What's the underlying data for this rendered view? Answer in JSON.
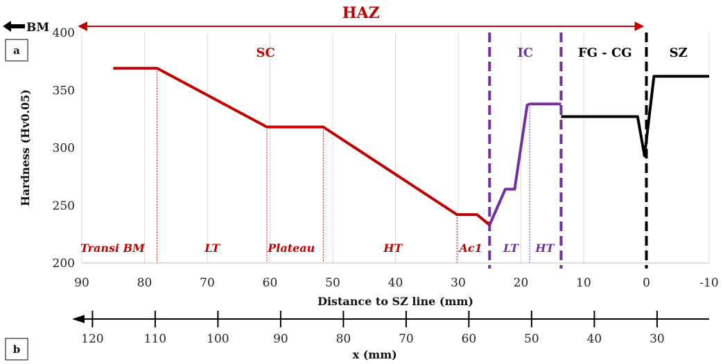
{
  "colors": {
    "red": "#c00000",
    "purple": "#7030a0",
    "black": "#000000",
    "grid": "#d9d9d9",
    "haz_arrow": "#c00000"
  },
  "panels": {
    "a": "a",
    "b": "b"
  },
  "haz": {
    "label": "HAZ",
    "x_start": 91,
    "x_end": 0
  },
  "bm_arrow": {
    "label": "BM"
  },
  "region_labels": [
    {
      "text": "SC",
      "x": 60.7,
      "color": "red"
    },
    {
      "text": "IC",
      "x": 19.3,
      "color": "purple"
    },
    {
      "text": "FG - CG",
      "x": 6.6,
      "color": "black"
    },
    {
      "text": "SZ",
      "x": -5.1,
      "color": "black"
    }
  ],
  "zone_labels": [
    {
      "text": "Transi BM",
      "x": 85.1,
      "color": "red"
    },
    {
      "text": "LT",
      "x": 69.2,
      "color": "red"
    },
    {
      "text": "Plateau",
      "x": 56.6,
      "color": "red"
    },
    {
      "text": "HT",
      "x": 40.4,
      "color": "red"
    },
    {
      "text": "Ac1",
      "x": 28.0,
      "color": "red"
    },
    {
      "text": "LT",
      "x": 21.6,
      "color": "purple"
    },
    {
      "text": "HT",
      "x": 16.2,
      "color": "purple"
    }
  ],
  "chart_data": {
    "type": "line",
    "title": "",
    "xlabel": "Distance to SZ line (mm)",
    "ylabel": "Hardness (Hv0.05)",
    "xlim": [
      90,
      -10
    ],
    "ylim": [
      200,
      400
    ],
    "xticks": [
      90,
      80,
      70,
      60,
      50,
      40,
      30,
      20,
      10,
      0,
      -10
    ],
    "xtick_labels": [
      "90",
      "80",
      "70",
      "60",
      "50",
      "40",
      "30",
      "20",
      "10",
      "0",
      "-10"
    ],
    "yticks": [
      200,
      250,
      300,
      350,
      400
    ],
    "ytick_labels": [
      "200",
      "250",
      "300",
      "350",
      "400"
    ],
    "grid": "vertical",
    "series": [
      {
        "color": "red",
        "x": [
          85,
          78,
          60.5,
          51.5,
          30.2,
          27,
          25
        ],
        "y": [
          369,
          369,
          318,
          318,
          242,
          242,
          233
        ]
      },
      {
        "color": "purple",
        "x": [
          25,
          22.5,
          21,
          19,
          18.6,
          13.6
        ],
        "y": [
          233,
          264,
          264,
          337,
          338,
          338
        ]
      },
      {
        "color": "black",
        "x": [
          13.6,
          1.4,
          0.3,
          -1.2,
          -10
        ],
        "y": [
          327,
          327,
          293,
          362,
          362
        ]
      }
    ],
    "boundaries": [
      {
        "x": 25,
        "style": "dashed",
        "color": "purple"
      },
      {
        "x": 13.6,
        "style": "dashed",
        "color": "purple"
      },
      {
        "x": 0,
        "style": "dashed",
        "color": "black"
      }
    ],
    "guide_lines": [
      {
        "x": 78,
        "y": 369
      },
      {
        "x": 60.5,
        "y": 318
      },
      {
        "x": 51.5,
        "y": 318
      },
      {
        "x": 30.2,
        "y": 242
      },
      {
        "x": 18.6,
        "y": 338
      }
    ],
    "secondary_axis": {
      "label": "x (mm)",
      "ticks": [
        120,
        110,
        100,
        90,
        80,
        70,
        60,
        50,
        40,
        30
      ],
      "tick_labels": [
        "120",
        "110",
        "100",
        "90",
        "80",
        "70",
        "60",
        "50",
        "40",
        "30"
      ],
      "distance_at_x120": 88.3,
      "distance_per_mm": 1.0
    }
  }
}
